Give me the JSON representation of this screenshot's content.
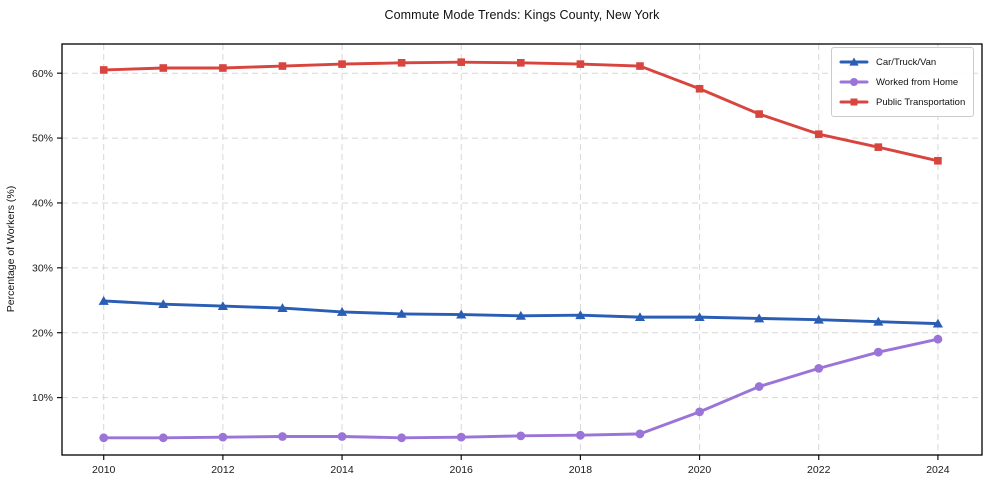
{
  "chart_data": {
    "type": "line",
    "title": "Commute Mode Trends: Kings County, New York",
    "xlabel": "",
    "ylabel": "Percentage of Workers (%)",
    "x": [
      2010,
      2011,
      2012,
      2013,
      2014,
      2015,
      2016,
      2017,
      2018,
      2019,
      2020,
      2021,
      2022,
      2023,
      2024
    ],
    "series": [
      {
        "name": "Car/Truck/Van",
        "color": "#2a5db4",
        "marker": "triangle",
        "values": [
          24.9,
          24.4,
          24.1,
          23.8,
          23.2,
          22.9,
          22.8,
          22.6,
          22.7,
          22.4,
          22.4,
          22.2,
          22.0,
          21.7,
          21.4
        ]
      },
      {
        "name": "Worked from Home",
        "color": "#9b74d8",
        "marker": "circle",
        "values": [
          3.8,
          3.8,
          3.9,
          4.0,
          4.0,
          3.8,
          3.9,
          4.1,
          4.2,
          4.4,
          7.8,
          11.7,
          14.5,
          17.0,
          19.0
        ]
      },
      {
        "name": "Public Transportation",
        "color": "#d8443e",
        "marker": "square",
        "values": [
          60.5,
          60.8,
          60.8,
          61.1,
          61.4,
          61.6,
          61.7,
          61.6,
          61.4,
          61.1,
          57.6,
          53.7,
          50.6,
          48.6,
          46.5
        ]
      }
    ],
    "xticks": [
      2010,
      2012,
      2014,
      2016,
      2018,
      2020,
      2022,
      2024
    ],
    "xtick_labels": [
      "2010",
      "2012",
      "2014",
      "2016",
      "2018",
      "2020",
      "2022",
      "2024"
    ],
    "yticks": [
      10,
      20,
      30,
      40,
      50,
      60
    ],
    "ytick_labels": [
      "10%",
      "20%",
      "30%",
      "40%",
      "50%",
      "60%"
    ],
    "xlim": [
      2009.3,
      2024.74
    ],
    "ylim": [
      1.15,
      64.5
    ],
    "grid": true,
    "legend_position": "upper right"
  }
}
